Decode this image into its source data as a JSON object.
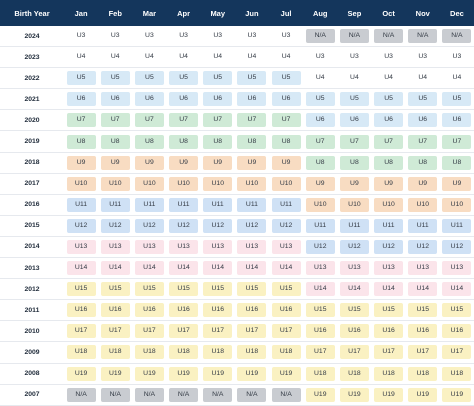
{
  "colors": {
    "header_bg": "#14365c",
    "na": "#c9ccd1",
    "plain": "transparent",
    "U5": "#d7e9f6",
    "U6": "#d7e9f6",
    "U7": "#cfead6",
    "U8": "#cfead6",
    "U9": "#f8dcc2",
    "U10": "#f8dcc2",
    "U11": "#cfe1f5",
    "U12": "#cfe1f5",
    "U13": "#fbe4ea",
    "U14": "#fbe4ea",
    "U15": "#faf1c2",
    "U16": "#faf1c2",
    "U17": "#faf1c2",
    "U18": "#faf1c2",
    "U19": "#faf1c2"
  },
  "header": {
    "first": "Birth Year",
    "months": [
      "Jan",
      "Feb",
      "Mar",
      "Apr",
      "May",
      "Jun",
      "Jul",
      "Aug",
      "Sep",
      "Oct",
      "Nov",
      "Dec"
    ]
  },
  "rows": [
    {
      "year": "2024",
      "cells": [
        "U3",
        "U3",
        "U3",
        "U3",
        "U3",
        "U3",
        "U3",
        "N/A",
        "N/A",
        "N/A",
        "N/A",
        "N/A"
      ]
    },
    {
      "year": "2023",
      "cells": [
        "U4",
        "U4",
        "U4",
        "U4",
        "U4",
        "U4",
        "U4",
        "U3",
        "U3",
        "U3",
        "U3",
        "U3"
      ]
    },
    {
      "year": "2022",
      "cells": [
        "U5",
        "U5",
        "U5",
        "U5",
        "U5",
        "U5",
        "U5",
        "U4",
        "U4",
        "U4",
        "U4",
        "U4"
      ]
    },
    {
      "year": "2021",
      "cells": [
        "U6",
        "U6",
        "U6",
        "U6",
        "U6",
        "U6",
        "U6",
        "U5",
        "U5",
        "U5",
        "U5",
        "U5"
      ]
    },
    {
      "year": "2020",
      "cells": [
        "U7",
        "U7",
        "U7",
        "U7",
        "U7",
        "U7",
        "U7",
        "U6",
        "U6",
        "U6",
        "U6",
        "U6"
      ]
    },
    {
      "year": "2019",
      "cells": [
        "U8",
        "U8",
        "U8",
        "U8",
        "U8",
        "U8",
        "U8",
        "U7",
        "U7",
        "U7",
        "U7",
        "U7"
      ]
    },
    {
      "year": "2018",
      "cells": [
        "U9",
        "U9",
        "U9",
        "U9",
        "U9",
        "U9",
        "U9",
        "U8",
        "U8",
        "U8",
        "U8",
        "U8"
      ]
    },
    {
      "year": "2017",
      "cells": [
        "U10",
        "U10",
        "U10",
        "U10",
        "U10",
        "U10",
        "U10",
        "U9",
        "U9",
        "U9",
        "U9",
        "U9"
      ]
    },
    {
      "year": "2016",
      "cells": [
        "U11",
        "U11",
        "U11",
        "U11",
        "U11",
        "U11",
        "U11",
        "U10",
        "U10",
        "U10",
        "U10",
        "U10"
      ]
    },
    {
      "year": "2015",
      "cells": [
        "U12",
        "U12",
        "U12",
        "U12",
        "U12",
        "U12",
        "U12",
        "U11",
        "U11",
        "U11",
        "U11",
        "U11"
      ]
    },
    {
      "year": "2014",
      "cells": [
        "U13",
        "U13",
        "U13",
        "U13",
        "U13",
        "U13",
        "U13",
        "U12",
        "U12",
        "U12",
        "U12",
        "U12"
      ]
    },
    {
      "year": "2013",
      "cells": [
        "U14",
        "U14",
        "U14",
        "U14",
        "U14",
        "U14",
        "U14",
        "U13",
        "U13",
        "U13",
        "U13",
        "U13"
      ]
    },
    {
      "year": "2012",
      "cells": [
        "U15",
        "U15",
        "U15",
        "U15",
        "U15",
        "U15",
        "U15",
        "U14",
        "U14",
        "U14",
        "U14",
        "U14"
      ]
    },
    {
      "year": "2011",
      "cells": [
        "U16",
        "U16",
        "U16",
        "U16",
        "U16",
        "U16",
        "U16",
        "U15",
        "U15",
        "U15",
        "U15",
        "U15"
      ]
    },
    {
      "year": "2010",
      "cells": [
        "U17",
        "U17",
        "U17",
        "U17",
        "U17",
        "U17",
        "U17",
        "U16",
        "U16",
        "U16",
        "U16",
        "U16"
      ]
    },
    {
      "year": "2009",
      "cells": [
        "U18",
        "U18",
        "U18",
        "U18",
        "U18",
        "U18",
        "U18",
        "U17",
        "U17",
        "U17",
        "U17",
        "U17"
      ]
    },
    {
      "year": "2008",
      "cells": [
        "U19",
        "U19",
        "U19",
        "U19",
        "U19",
        "U19",
        "U19",
        "U18",
        "U18",
        "U18",
        "U18",
        "U18"
      ]
    },
    {
      "year": "2007",
      "cells": [
        "N/A",
        "N/A",
        "N/A",
        "N/A",
        "N/A",
        "N/A",
        "N/A",
        "U19",
        "U19",
        "U19",
        "U19",
        "U19"
      ]
    }
  ]
}
